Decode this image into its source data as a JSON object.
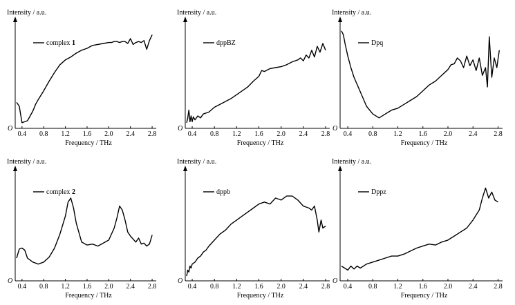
{
  "chart_data": [
    {
      "type": "line",
      "ylabel": "Intensity / a.u.",
      "xlabel": "Frequency / THz",
      "origin_label": "O",
      "legend": {
        "text": "complex ",
        "bold": "1",
        "placement": "top-left"
      },
      "xticks": [
        "0.4",
        "0.8",
        "1.2",
        "1.6",
        "2.0",
        "2.4",
        "2.8"
      ],
      "xlim": [
        0.3,
        2.85
      ],
      "ylim": [
        0,
        100
      ],
      "series": [
        {
          "x": [
            0.3,
            0.35,
            0.4,
            0.45,
            0.5,
            0.55,
            0.6,
            0.65,
            0.7,
            0.8,
            0.9,
            1.0,
            1.1,
            1.2,
            1.3,
            1.4,
            1.5,
            1.6,
            1.7,
            1.8,
            1.9,
            2.0,
            2.05,
            2.1,
            2.15,
            2.2,
            2.25,
            2.3,
            2.35,
            2.4,
            2.45,
            2.5,
            2.55,
            2.6,
            2.65,
            2.7,
            2.75,
            2.8
          ],
          "y": [
            24,
            20,
            3,
            4,
            5,
            10,
            15,
            22,
            27,
            36,
            46,
            55,
            63,
            68,
            71,
            75,
            78,
            80,
            83,
            84,
            85,
            86,
            86,
            87,
            87,
            86,
            87,
            87,
            85,
            90,
            84,
            86,
            87,
            86,
            88,
            79,
            88,
            94
          ]
        }
      ]
    },
    {
      "type": "line",
      "ylabel": "Intensity / a.u.",
      "xlabel": "Frequency / THz",
      "origin_label": "O",
      "legend": {
        "text": "dppBZ",
        "bold": "",
        "placement": "top-left"
      },
      "xticks": [
        "0.4",
        "0.8",
        "1.2",
        "1.6",
        "2.0",
        "2.4",
        "2.8"
      ],
      "xlim": [
        0.3,
        2.85
      ],
      "ylim": [
        0,
        100
      ],
      "series": [
        {
          "x": [
            0.3,
            0.32,
            0.34,
            0.36,
            0.38,
            0.4,
            0.42,
            0.45,
            0.5,
            0.55,
            0.6,
            0.7,
            0.8,
            0.9,
            1.0,
            1.1,
            1.2,
            1.3,
            1.4,
            1.5,
            1.6,
            1.65,
            1.7,
            1.8,
            1.9,
            2.0,
            2.1,
            2.2,
            2.3,
            2.35,
            2.4,
            2.45,
            2.5,
            2.55,
            2.6,
            2.65,
            2.7,
            2.75,
            2.8
          ],
          "y": [
            3,
            8,
            16,
            4,
            10,
            4,
            9,
            6,
            10,
            8,
            12,
            14,
            19,
            22,
            25,
            28,
            32,
            36,
            40,
            46,
            51,
            57,
            56,
            59,
            60,
            61,
            63,
            66,
            68,
            70,
            67,
            73,
            70,
            78,
            71,
            82,
            76,
            85,
            78
          ]
        }
      ]
    },
    {
      "type": "line",
      "ylabel": "Intensity / a.u.",
      "xlabel": "Frequency / THz",
      "origin_label": "O",
      "legend": {
        "text": "Dpq",
        "bold": "",
        "placement": "top-left"
      },
      "xticks": [
        "0.4",
        "0.8",
        "1.2",
        "1.6",
        "2.0",
        "2.4",
        "2.8"
      ],
      "xlim": [
        0.3,
        2.85
      ],
      "ylim": [
        0,
        100
      ],
      "series": [
        {
          "x": [
            0.3,
            0.33,
            0.36,
            0.4,
            0.45,
            0.5,
            0.6,
            0.7,
            0.8,
            0.9,
            1.0,
            1.1,
            1.2,
            1.3,
            1.4,
            1.5,
            1.6,
            1.7,
            1.8,
            1.9,
            2.0,
            2.05,
            2.1,
            2.15,
            2.2,
            2.25,
            2.3,
            2.35,
            2.4,
            2.45,
            2.5,
            2.55,
            2.6,
            2.63,
            2.66,
            2.7,
            2.74,
            2.78,
            2.82
          ],
          "y": [
            98,
            94,
            84,
            72,
            60,
            50,
            35,
            20,
            12,
            8,
            12,
            16,
            18,
            22,
            26,
            30,
            36,
            42,
            46,
            52,
            58,
            63,
            64,
            70,
            67,
            60,
            72,
            62,
            68,
            57,
            70,
            52,
            60,
            40,
            92,
            50,
            70,
            60,
            78
          ]
        }
      ]
    },
    {
      "type": "line",
      "ylabel": "Intensity / a.u.",
      "xlabel": "Frequency / THz",
      "origin_label": "O",
      "legend": {
        "text": "complex ",
        "bold": "2",
        "placement": "top-left"
      },
      "xticks": [
        "0.4",
        "0.8",
        "1.2",
        "1.6",
        "2.0",
        "2.4",
        "2.8"
      ],
      "xlim": [
        0.3,
        2.85
      ],
      "ylim": [
        0,
        100
      ],
      "series": [
        {
          "x": [
            0.3,
            0.35,
            0.4,
            0.45,
            0.5,
            0.6,
            0.7,
            0.8,
            0.9,
            1.0,
            1.1,
            1.2,
            1.25,
            1.3,
            1.35,
            1.4,
            1.5,
            1.6,
            1.7,
            1.8,
            1.9,
            2.0,
            2.1,
            2.15,
            2.2,
            2.25,
            2.3,
            2.35,
            2.4,
            2.5,
            2.55,
            2.6,
            2.65,
            2.7,
            2.75,
            2.8
          ],
          "y": [
            20,
            29,
            30,
            28,
            20,
            16,
            14,
            16,
            21,
            30,
            44,
            62,
            76,
            80,
            70,
            55,
            36,
            33,
            34,
            32,
            35,
            38,
            50,
            60,
            72,
            68,
            58,
            46,
            42,
            36,
            40,
            34,
            35,
            32,
            34,
            43
          ]
        }
      ]
    },
    {
      "type": "line",
      "ylabel": "Intensity / a.u.",
      "xlabel": "Frequency / THz",
      "origin_label": "O",
      "legend": {
        "text": "dppb",
        "bold": "",
        "placement": "top-left"
      },
      "xticks": [
        "0.4",
        "0.8",
        "1.2",
        "1.6",
        "2.0",
        "2.4",
        "2.8"
      ],
      "xlim": [
        0.3,
        2.85
      ],
      "ylim": [
        0,
        100
      ],
      "series": [
        {
          "x": [
            0.3,
            0.32,
            0.34,
            0.36,
            0.38,
            0.4,
            0.45,
            0.5,
            0.55,
            0.6,
            0.65,
            0.7,
            0.8,
            0.9,
            1.0,
            1.1,
            1.2,
            1.3,
            1.4,
            1.5,
            1.6,
            1.7,
            1.8,
            1.9,
            2.0,
            2.1,
            2.2,
            2.3,
            2.4,
            2.5,
            2.55,
            2.6,
            2.65,
            2.68,
            2.72,
            2.75,
            2.8
          ],
          "y": [
            2,
            8,
            6,
            12,
            10,
            14,
            16,
            20,
            22,
            26,
            28,
            32,
            38,
            44,
            48,
            54,
            58,
            62,
            66,
            70,
            74,
            76,
            74,
            80,
            78,
            82,
            82,
            78,
            72,
            70,
            68,
            72,
            58,
            46,
            58,
            50,
            52
          ]
        }
      ]
    },
    {
      "type": "line",
      "ylabel": "Intensity / a.u.",
      "xlabel": "Frequency / THz",
      "origin_label": "O",
      "legend": {
        "text": "Dppz",
        "bold": "",
        "placement": "top-left"
      },
      "xticks": [
        "0.4",
        "0.8",
        "1.2",
        "1.6",
        "2.0",
        "2.4",
        "2.8"
      ],
      "xlim": [
        0.3,
        2.85
      ],
      "ylim": [
        0,
        100
      ],
      "series": [
        {
          "x": [
            0.3,
            0.35,
            0.4,
            0.45,
            0.5,
            0.55,
            0.6,
            0.7,
            0.8,
            0.9,
            1.0,
            1.1,
            1.2,
            1.3,
            1.4,
            1.5,
            1.6,
            1.7,
            1.8,
            1.9,
            2.0,
            2.1,
            2.2,
            2.3,
            2.4,
            2.5,
            2.55,
            2.6,
            2.65,
            2.7,
            2.75,
            2.8
          ],
          "y": [
            12,
            10,
            8,
            12,
            9,
            12,
            10,
            14,
            16,
            18,
            20,
            22,
            22,
            24,
            27,
            30,
            32,
            34,
            33,
            36,
            38,
            42,
            46,
            50,
            58,
            68,
            80,
            90,
            80,
            86,
            78,
            76
          ]
        }
      ]
    }
  ]
}
